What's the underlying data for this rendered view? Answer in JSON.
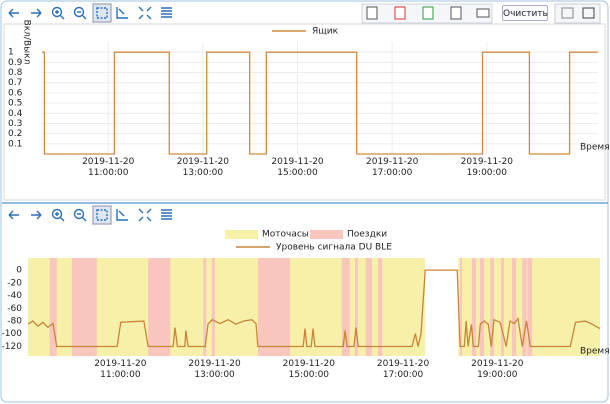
{
  "toolbar": {
    "clear_button": "Очистить"
  },
  "chart_data": [
    {
      "type": "line",
      "legend": "top",
      "grid": true,
      "ylabel": "Вкл/Выкл",
      "xlabel": "Время",
      "xlim": [
        9.6,
        21.35
      ],
      "ylim": [
        0,
        1.1
      ],
      "yticks": [
        0.1,
        0.2,
        0.3,
        0.4,
        0.5,
        0.6,
        0.7,
        0.8,
        0.9,
        1
      ],
      "xticks": [
        {
          "value": 11,
          "label": "2019-11-20\n11:00:00"
        },
        {
          "value": 13,
          "label": "2019-11-20\n13:00:00"
        },
        {
          "value": 15,
          "label": "2019-11-20\n15:00:00"
        },
        {
          "value": 17,
          "label": "2019-11-20\n17:00:00"
        },
        {
          "value": 19,
          "label": "2019-11-20\n19:00:00"
        }
      ],
      "x": [
        9.6,
        9.65,
        9.65,
        11.13,
        11.13,
        12.29,
        12.29,
        13.08,
        13.08,
        13.99,
        13.99,
        14.34,
        14.34,
        16.25,
        16.25,
        18.91,
        18.91,
        19.9,
        19.9,
        20.75,
        20.75,
        21.35
      ],
      "series": [
        {
          "name": "Ящик",
          "color": "#d08a3c",
          "values": [
            1,
            1,
            0,
            0,
            1,
            1,
            0,
            0,
            1,
            1,
            0,
            0,
            1,
            1,
            0,
            0,
            1,
            1,
            0,
            0,
            1,
            1
          ]
        }
      ]
    },
    {
      "type": "line",
      "legend": "top",
      "grid": false,
      "xlabel": "Время",
      "xlim": [
        9.04,
        21.18
      ],
      "ylim": [
        -135,
        19
      ],
      "yticks": [
        0,
        -20,
        -40,
        -60,
        -80,
        -100,
        -120
      ],
      "xticks": [
        {
          "value": 11,
          "label": "2019-11-20\n11:00:00"
        },
        {
          "value": 13,
          "label": "2019-11-20\n13:00:00"
        },
        {
          "value": 15,
          "label": "2019-11-20\n15:00:00"
        },
        {
          "value": 17,
          "label": "2019-11-20\n17:00:00"
        },
        {
          "value": 19,
          "label": "2019-11-20\n19:00:00"
        }
      ],
      "bands": [
        {
          "name": "Моточасы",
          "color": "#f7f0a8",
          "intervals": [
            [
              9.04,
              17.47
            ],
            [
              18.17,
              21.18
            ]
          ]
        },
        {
          "name": "Поездки",
          "color": "#f8c6bd",
          "intervals": [
            [
              9.5,
              9.65
            ],
            [
              9.97,
              10.5
            ],
            [
              11.59,
              12.06
            ],
            [
              12.76,
              12.82
            ],
            [
              12.94,
              13.01
            ],
            [
              13.92,
              14.6
            ],
            [
              15.7,
              15.87
            ],
            [
              15.98,
              16.04
            ],
            [
              16.21,
              16.34
            ],
            [
              16.47,
              16.56
            ],
            [
              18.21,
              18.25
            ],
            [
              18.46,
              18.55
            ],
            [
              18.63,
              18.72
            ],
            [
              18.85,
              18.93
            ],
            [
              19.08,
              19.14
            ],
            [
              19.31,
              19.4
            ],
            [
              19.53,
              19.62
            ],
            [
              19.64,
              19.74
            ]
          ]
        }
      ],
      "x": [
        9.04,
        9.14,
        9.25,
        9.36,
        9.46,
        9.57,
        9.65,
        10.93,
        11.01,
        11.5,
        11.59,
        12.12,
        12.16,
        12.21,
        12.37,
        12.39,
        12.44,
        12.8,
        12.86,
        12.95,
        13.11,
        13.29,
        13.45,
        13.62,
        13.79,
        13.88,
        13.92,
        14.88,
        14.92,
        14.96,
        15.05,
        15.09,
        15.13,
        15.73,
        15.77,
        15.81,
        15.96,
        16.0,
        16.05,
        17.19,
        17.26,
        17.32,
        17.38,
        17.47,
        18.15,
        18.21,
        18.3,
        18.34,
        18.38,
        18.45,
        18.49,
        18.6,
        18.64,
        18.72,
        18.81,
        18.87,
        18.93,
        19.06,
        19.19,
        19.27,
        19.36,
        19.44,
        19.53,
        19.62,
        19.7,
        19.81,
        20.55,
        20.66,
        20.87,
        21.01,
        21.18
      ],
      "series": [
        {
          "name": "Уровень сигнала DU BLE",
          "color": "#c8853a",
          "values": [
            -85,
            -80,
            -88,
            -82,
            -90,
            -84,
            -120,
            -120,
            -82,
            -80,
            -120,
            -120,
            -90,
            -120,
            -120,
            -95,
            -120,
            -120,
            -85,
            -78,
            -84,
            -78,
            -85,
            -80,
            -78,
            -84,
            -120,
            -120,
            -92,
            -120,
            -120,
            -92,
            -120,
            -120,
            -95,
            -120,
            -120,
            -90,
            -120,
            -120,
            -100,
            -120,
            -100,
            0,
            0,
            -120,
            -120,
            -80,
            -120,
            -85,
            -120,
            -120,
            -85,
            -80,
            -85,
            -120,
            -78,
            -82,
            -120,
            -80,
            -84,
            -76,
            -120,
            -80,
            -120,
            -120,
            -120,
            -82,
            -80,
            -85,
            -92
          ]
        }
      ]
    }
  ]
}
